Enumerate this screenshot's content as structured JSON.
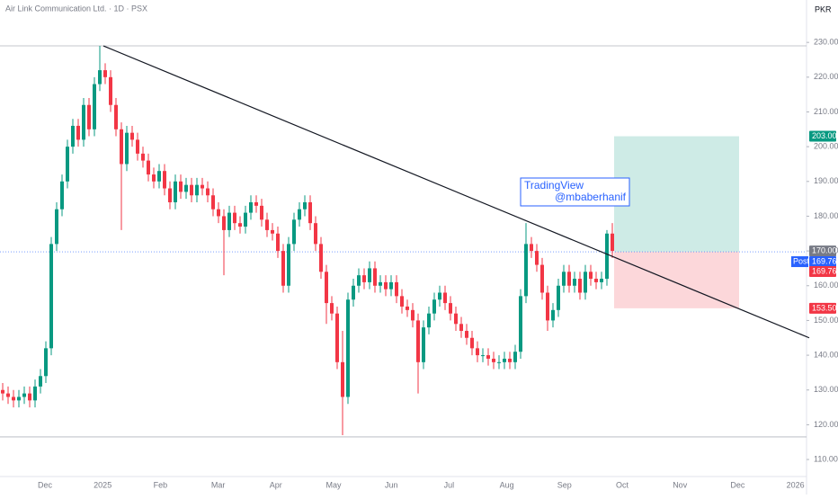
{
  "chart_data": {
    "type": "candlestick",
    "title": "Air Link Communication Ltd. · 1D · PSX",
    "currency": "PKR",
    "up_color": "#089981",
    "down_color": "#f23645",
    "ylim": [
      105.1,
      242.2
    ],
    "yticks": [
      {
        "value": 230,
        "label": "230.00"
      },
      {
        "value": 220,
        "label": "220.00"
      },
      {
        "value": 210,
        "label": "210.00"
      },
      {
        "value": 200,
        "label": "200.00"
      },
      {
        "value": 190,
        "label": "190.00"
      },
      {
        "value": 180,
        "label": "180.00"
      },
      {
        "value": 170,
        "label": "170.00"
      },
      {
        "value": 160,
        "label": "160.00"
      },
      {
        "value": 150,
        "label": "150.00"
      },
      {
        "value": 140,
        "label": "140.00"
      },
      {
        "value": 130,
        "label": "130.00"
      },
      {
        "value": 120,
        "label": "120.00"
      },
      {
        "value": 110,
        "label": "110.00"
      }
    ],
    "xticks": [
      "Dec",
      "2025",
      "Feb",
      "Mar",
      "Apr",
      "May",
      "Jun",
      "Jul",
      "Aug",
      "Sep",
      "Oct",
      "Nov",
      "Dec",
      "2026"
    ],
    "open": [
      130,
      129,
      128,
      127,
      128,
      129,
      127,
      131,
      134,
      142,
      172,
      182,
      190,
      200,
      206,
      202,
      212,
      205,
      218,
      222,
      220,
      212,
      205,
      195,
      204,
      202,
      198,
      196,
      192,
      190,
      193,
      188,
      184,
      190,
      187,
      189,
      186,
      189,
      188,
      186,
      182,
      180,
      176,
      181,
      178,
      177,
      181,
      184,
      183,
      179,
      176,
      175,
      170,
      160,
      172,
      179,
      182,
      184,
      178,
      172,
      164,
      155,
      152,
      138,
      128,
      156,
      160,
      163,
      161,
      165,
      160,
      161,
      159,
      161,
      157,
      154,
      153,
      150,
      138,
      148,
      152,
      156,
      158,
      155,
      152,
      149,
      147,
      145,
      142,
      140,
      140,
      139,
      138,
      138,
      139,
      138,
      141,
      157,
      172,
      170,
      166,
      158,
      150,
      153,
      160,
      164,
      160,
      162,
      158,
      164,
      162,
      161,
      162,
      175
    ],
    "high": [
      132,
      131,
      130,
      130,
      131,
      131,
      133,
      136,
      144,
      174,
      184,
      192,
      202,
      208,
      208,
      214,
      214,
      220,
      229,
      224,
      222,
      214,
      207,
      206,
      206,
      204,
      200,
      198,
      194,
      195,
      195,
      190,
      192,
      192,
      191,
      191,
      191,
      191,
      190,
      188,
      184,
      182,
      183,
      183,
      180,
      183,
      186,
      186,
      185,
      181,
      178,
      177,
      172,
      174,
      181,
      184,
      186,
      186,
      180,
      174,
      166,
      157,
      154,
      147,
      158,
      162,
      165,
      165,
      167,
      167,
      163,
      163,
      163,
      163,
      159,
      156,
      155,
      152,
      150,
      154,
      158,
      160,
      160,
      157,
      154,
      151,
      149,
      147,
      144,
      142,
      142,
      141,
      140,
      141,
      141,
      143,
      159,
      178,
      174,
      172,
      168,
      160,
      155,
      162,
      166,
      166,
      164,
      164,
      166,
      166,
      164,
      164,
      176,
      178
    ],
    "low": [
      127,
      126,
      125,
      125,
      126,
      125,
      125,
      129,
      132,
      140,
      170,
      180,
      188,
      198,
      200,
      200,
      203,
      203,
      216,
      218,
      210,
      203,
      176,
      193,
      200,
      196,
      194,
      190,
      188,
      188,
      186,
      182,
      182,
      185,
      185,
      184,
      184,
      186,
      184,
      180,
      178,
      163,
      174,
      176,
      175,
      175,
      179,
      181,
      177,
      174,
      173,
      168,
      158,
      158,
      170,
      177,
      180,
      176,
      170,
      162,
      149,
      150,
      136,
      117,
      126,
      154,
      158,
      159,
      159,
      158,
      158,
      157,
      157,
      155,
      152,
      151,
      148,
      129,
      136,
      146,
      150,
      154,
      153,
      150,
      147,
      145,
      143,
      140,
      138,
      138,
      137,
      136,
      136,
      136,
      136,
      136,
      139,
      155,
      168,
      164,
      156,
      147,
      148,
      151,
      158,
      158,
      158,
      156,
      156,
      160,
      159,
      159,
      160,
      168
    ],
    "close": [
      129,
      128,
      127,
      128,
      129,
      127,
      131,
      134,
      142,
      172,
      182,
      190,
      200,
      206,
      202,
      212,
      205,
      218,
      222,
      220,
      212,
      205,
      195,
      204,
      202,
      198,
      196,
      192,
      190,
      193,
      188,
      184,
      190,
      187,
      189,
      186,
      189,
      188,
      186,
      182,
      180,
      176,
      181,
      178,
      177,
      181,
      184,
      183,
      179,
      176,
      175,
      170,
      160,
      172,
      179,
      182,
      184,
      178,
      172,
      164,
      155,
      152,
      138,
      128,
      156,
      160,
      163,
      161,
      165,
      160,
      161,
      159,
      161,
      157,
      154,
      153,
      150,
      138,
      148,
      152,
      156,
      158,
      155,
      152,
      149,
      147,
      145,
      142,
      140,
      140,
      139,
      138,
      138,
      139,
      138,
      141,
      157,
      172,
      170,
      166,
      158,
      150,
      153,
      160,
      164,
      160,
      162,
      158,
      164,
      162,
      161,
      162,
      175,
      170
    ],
    "levels": [
      229,
      116.5
    ],
    "trend_line": [
      229,
      145
    ],
    "position": {
      "target": 203,
      "entry": 169.76,
      "stop": 153.5
    },
    "price_labels": [
      {
        "value": 203,
        "label": "203.00",
        "color": "#089981"
      },
      {
        "value": 170,
        "label": "170.00",
        "color": "#787b86"
      },
      {
        "value": 169.76,
        "label": "169.76",
        "tag": "Post",
        "color": "#2962ff"
      },
      {
        "value": 169.76,
        "label": "169.76",
        "color": "#f23645"
      },
      {
        "value": 153.5,
        "label": "153.50",
        "color": "#f23645"
      }
    ],
    "watermark": [
      "TradingView",
      "@mbaberhanif"
    ]
  }
}
